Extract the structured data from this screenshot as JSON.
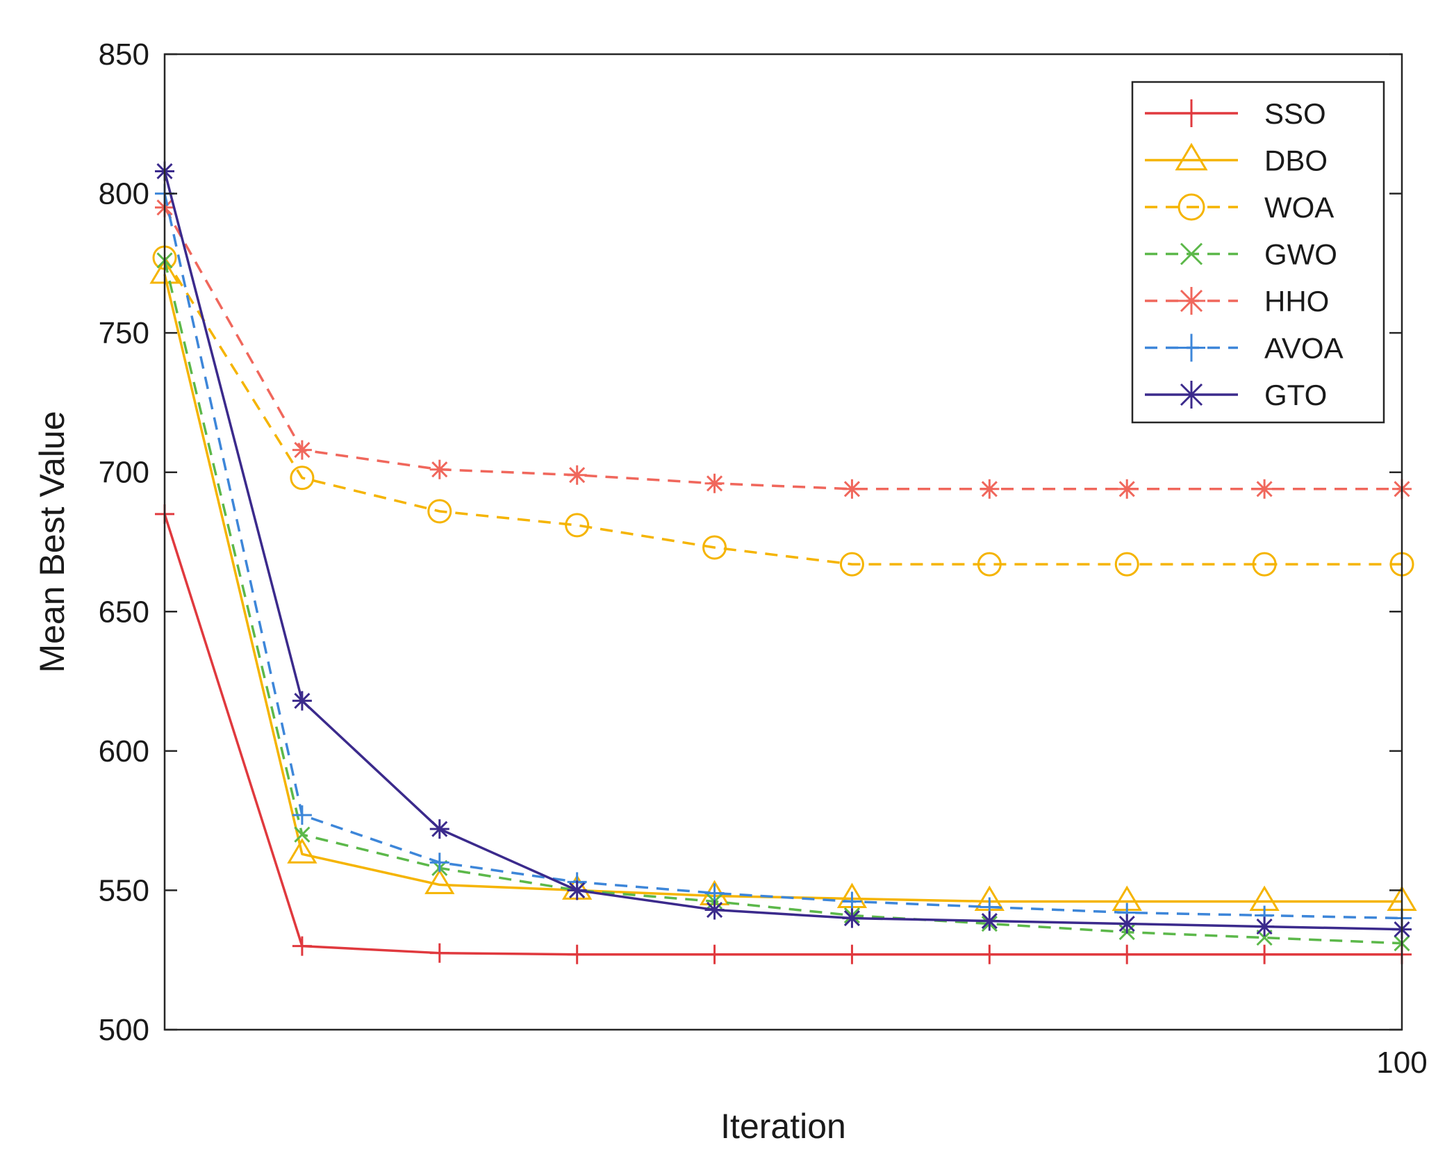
{
  "chart_data": {
    "type": "line",
    "title": "",
    "xlabel": "Iteration",
    "ylabel": "Mean Best Value",
    "x": [
      1,
      12,
      23,
      34,
      45,
      56,
      67,
      78,
      89,
      100
    ],
    "xlim": [
      1,
      100
    ],
    "ylim": [
      500,
      850
    ],
    "yticks": [
      500,
      550,
      600,
      650,
      700,
      750,
      800,
      850
    ],
    "xtick_labels": [
      "100"
    ],
    "grid": false,
    "legend_position": "top-right",
    "series": [
      {
        "name": "SSO",
        "color": "#e0393e",
        "dash": "solid",
        "marker": "plus",
        "values": [
          685,
          530,
          527.5,
          527,
          527,
          527,
          527,
          527,
          527,
          527
        ]
      },
      {
        "name": "DBO",
        "color": "#f5b400",
        "dash": "solid",
        "marker": "triangle",
        "values": [
          771,
          563,
          552,
          550,
          548,
          547,
          546,
          546,
          546,
          546
        ]
      },
      {
        "name": "WOA",
        "color": "#f5b400",
        "dash": "dashed",
        "marker": "circle",
        "values": [
          777,
          698,
          686,
          681,
          673,
          667,
          667,
          667,
          667,
          667
        ]
      },
      {
        "name": "GWO",
        "color": "#5cb84a",
        "dash": "dashed",
        "marker": "x",
        "values": [
          776,
          570,
          558,
          550,
          546,
          541,
          538,
          535,
          533,
          531
        ]
      },
      {
        "name": "HHO",
        "color": "#f0675c",
        "dash": "dashed",
        "marker": "asterisk",
        "values": [
          795,
          708,
          701,
          699,
          696,
          694,
          694,
          694,
          694,
          694
        ]
      },
      {
        "name": "AVOA",
        "color": "#3d86d9",
        "dash": "dashed",
        "marker": "plus",
        "values": [
          800,
          577,
          560,
          553,
          549,
          546,
          544,
          542,
          541,
          540
        ]
      },
      {
        "name": "GTO",
        "color": "#3b2a8c",
        "dash": "solid",
        "marker": "asterisk",
        "values": [
          808,
          618,
          572,
          550,
          543,
          540,
          539,
          538,
          537,
          536
        ]
      }
    ]
  }
}
